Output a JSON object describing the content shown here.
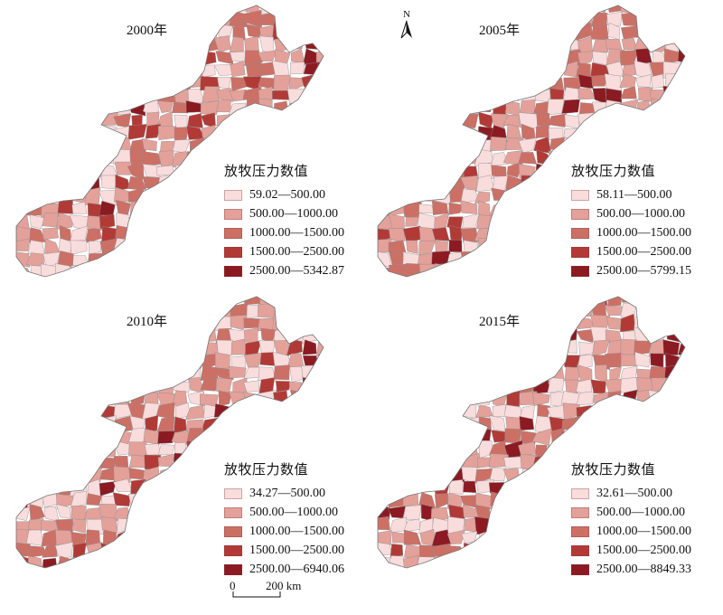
{
  "panels": [
    {
      "year": "2000年",
      "legend_title": "放牧压力数值",
      "classes": [
        "59.02—500.00",
        "500.00—1000.00",
        "1000.00—1500.00",
        "1500.00—2500.00",
        "2500.00—5342.87"
      ]
    },
    {
      "year": "2005年",
      "legend_title": "放牧压力数值",
      "classes": [
        "58.11—500.00",
        "500.00—1000.00",
        "1000.00—1500.00",
        "1500.00—2500.00",
        "2500.00—5799.15"
      ]
    },
    {
      "year": "2010年",
      "legend_title": "放牧压力数值",
      "classes": [
        "34.27—500.00",
        "500.00—1000.00",
        "1000.00—1500.00",
        "1500.00—2500.00",
        "2500.00—6940.06"
      ]
    },
    {
      "year": "2015年",
      "legend_title": "放牧压力数值",
      "classes": [
        "32.61—500.00",
        "500.00—1000.00",
        "1000.00—1500.00",
        "1500.00—2500.00",
        "2500.00—8849.33"
      ]
    }
  ],
  "colors": [
    "#f9dcdc",
    "#e3a19a",
    "#cc7066",
    "#b23a36",
    "#8c1a22"
  ],
  "north_arrow": {
    "label": "N",
    "icon": "north-arrow-icon"
  },
  "scale_bar": {
    "start": "0",
    "end": "200 km"
  }
}
